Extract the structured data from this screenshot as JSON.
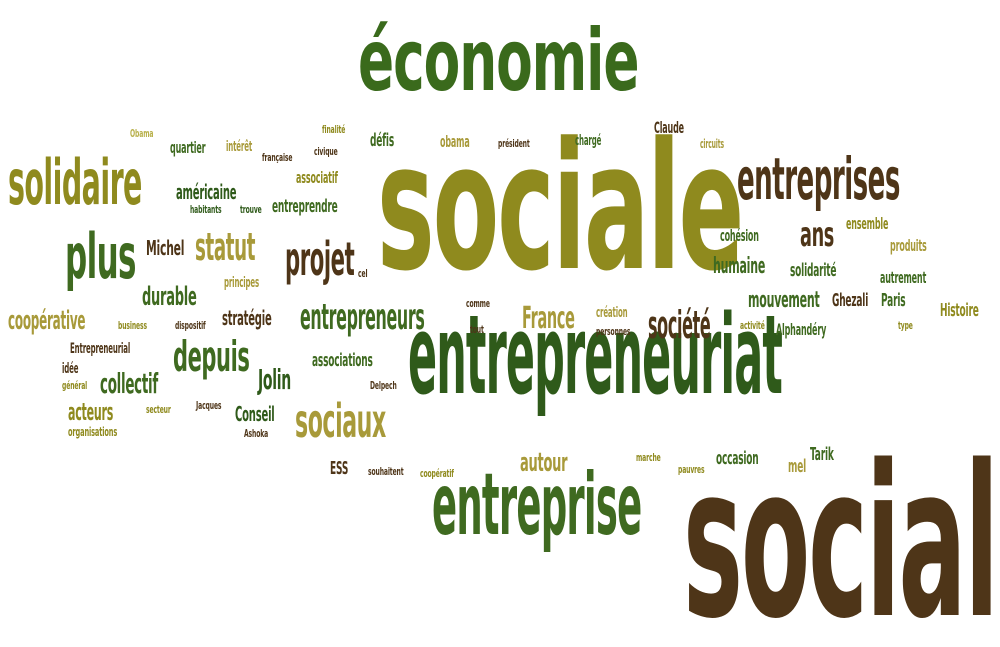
{
  "colors": {
    "olive": "#8f8a1e",
    "dark_green": "#2f5a1a",
    "green": "#3f6a20",
    "brown": "#4e3518",
    "khaki": "#a89a3a",
    "light_olive": "#b8b04a"
  },
  "words": {
    "economie": "économie",
    "sociale": "sociale",
    "entrepreneuriat": "entrepreneuriat",
    "social": "social",
    "entreprise": "entreprise",
    "entreprises": "entreprises",
    "solidaire": "solidaire",
    "plus": "plus",
    "statut": "statut",
    "projet": "projet",
    "entrepreneurs": "entrepreneurs",
    "depuis": "depuis",
    "sociaux": "sociaux",
    "societe": "société",
    "France": "France",
    "ans": "ans",
    "americaine": "américaine",
    "Michel": "Michel",
    "durable": "durable",
    "cooperative": "coopérative",
    "collectif": "collectif",
    "acteurs": "acteurs",
    "Jolin": "Jolin",
    "associations": "associations",
    "Conseil": "Conseil",
    "strategie": "stratégie",
    "humaine": "humaine",
    "solidarite": "solidarité",
    "mouvement": "mouvement",
    "Ghezali": "Ghezali",
    "Paris": "Paris",
    "Histoire": "Histoire",
    "Alphandery": "Alphandéry",
    "cohesion": "cohésion",
    "ensemble": "ensemble",
    "produits": "produits",
    "autrement": "autrement",
    "autour": "autour",
    "occasion": "occasion",
    "mel": "mel",
    "Tarik": "Tarik",
    "ESS": "ESS",
    "defis": "défis",
    "obama": "obama",
    "charge": "chargé",
    "Claude": "Claude",
    "circuits": "circuits",
    "quartier": "quartier",
    "interet": "intérêt",
    "associatif": "associatif",
    "entreprendre": "entreprendre",
    "Obama": "Obama",
    "finalite": "finalité",
    "civique": "civique",
    "francaise": "française",
    "president": "président",
    "habitants": "habitants",
    "trouve": "trouve",
    "principes": "principes",
    "business": "business",
    "dispositif": "dispositif",
    "Entrepreneurial": "Entrepreneurial",
    "idee": "idée",
    "general": "général",
    "secteur": "secteur",
    "Jacques": "Jacques",
    "organisations": "organisations",
    "Ashoka": "Ashoka",
    "Delpech": "Delpech",
    "cel": "cel",
    "comme": "comme",
    "tout": "tout",
    "creation": "création",
    "personnes": "personnes",
    "activite": "activité",
    "type": "type",
    "souhaitent": "souhaitent",
    "cooperatif": "coopératif",
    "marche": "marche",
    "pauvres": "pauvres"
  }
}
